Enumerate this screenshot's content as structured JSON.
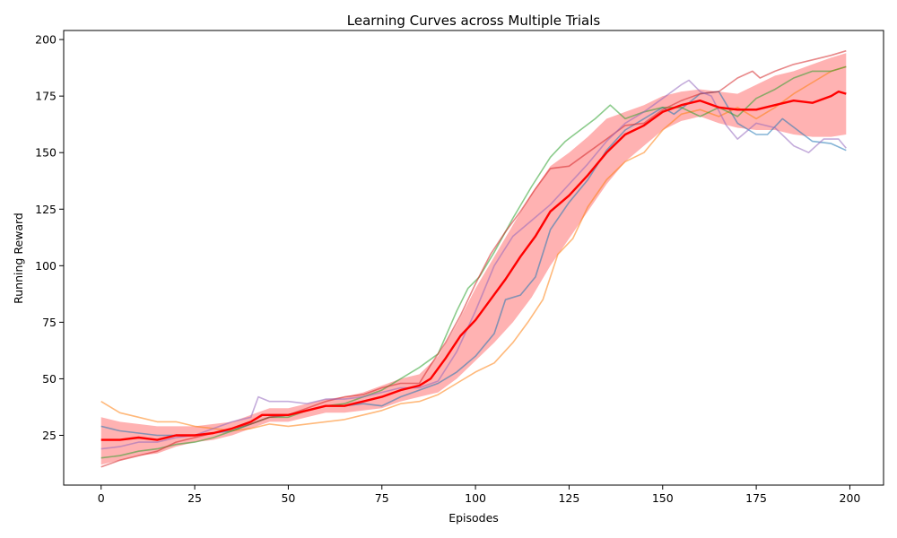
{
  "chart_data": {
    "type": "line",
    "title": "Learning Curves across Multiple Trials",
    "xlabel": "Episodes",
    "ylabel": "Running Reward",
    "xlim": [
      -10,
      209
    ],
    "ylim": [
      3,
      204
    ],
    "x_ticks": [
      0,
      25,
      50,
      75,
      100,
      125,
      150,
      175,
      200
    ],
    "y_ticks": [
      25,
      50,
      75,
      100,
      125,
      150,
      175,
      200
    ],
    "grid": false,
    "legend": "none",
    "series": [
      {
        "color": "#1f77b4",
        "opacity": 0.55,
        "points": [
          [
            0,
            29
          ],
          [
            5,
            27
          ],
          [
            10,
            26
          ],
          [
            15,
            25
          ],
          [
            20,
            25
          ],
          [
            25,
            25
          ],
          [
            30,
            26
          ],
          [
            35,
            27
          ],
          [
            40,
            30
          ],
          [
            45,
            33
          ],
          [
            50,
            34
          ],
          [
            55,
            36
          ],
          [
            60,
            38
          ],
          [
            65,
            38
          ],
          [
            70,
            39
          ],
          [
            75,
            38
          ],
          [
            80,
            42
          ],
          [
            85,
            45
          ],
          [
            90,
            48
          ],
          [
            95,
            53
          ],
          [
            100,
            60
          ],
          [
            105,
            70
          ],
          [
            108,
            85
          ],
          [
            112,
            87
          ],
          [
            116,
            95
          ],
          [
            120,
            116
          ],
          [
            125,
            128
          ],
          [
            130,
            138
          ],
          [
            135,
            151
          ],
          [
            140,
            160
          ],
          [
            145,
            165
          ],
          [
            150,
            170
          ],
          [
            153,
            167
          ],
          [
            157,
            172
          ],
          [
            160,
            176
          ],
          [
            165,
            177
          ],
          [
            170,
            163
          ],
          [
            175,
            158
          ],
          [
            178,
            158
          ],
          [
            182,
            165
          ],
          [
            186,
            160
          ],
          [
            190,
            155
          ],
          [
            195,
            154
          ],
          [
            199,
            151
          ]
        ]
      },
      {
        "color": "#ff7f0e",
        "opacity": 0.55,
        "points": [
          [
            0,
            40
          ],
          [
            5,
            35
          ],
          [
            10,
            33
          ],
          [
            15,
            31
          ],
          [
            20,
            31
          ],
          [
            25,
            29
          ],
          [
            30,
            28
          ],
          [
            35,
            27
          ],
          [
            40,
            28
          ],
          [
            45,
            30
          ],
          [
            50,
            29
          ],
          [
            55,
            30
          ],
          [
            60,
            31
          ],
          [
            65,
            32
          ],
          [
            70,
            34
          ],
          [
            75,
            36
          ],
          [
            80,
            39
          ],
          [
            85,
            40
          ],
          [
            90,
            43
          ],
          [
            95,
            48
          ],
          [
            100,
            53
          ],
          [
            105,
            57
          ],
          [
            110,
            66
          ],
          [
            114,
            75
          ],
          [
            118,
            85
          ],
          [
            122,
            105
          ],
          [
            126,
            112
          ],
          [
            130,
            126
          ],
          [
            135,
            138
          ],
          [
            140,
            146
          ],
          [
            145,
            150
          ],
          [
            150,
            160
          ],
          [
            155,
            167
          ],
          [
            160,
            169
          ],
          [
            165,
            166
          ],
          [
            170,
            170
          ],
          [
            175,
            165
          ],
          [
            180,
            170
          ],
          [
            185,
            176
          ],
          [
            190,
            181
          ],
          [
            195,
            186
          ],
          [
            199,
            188
          ]
        ]
      },
      {
        "color": "#2ca02c",
        "opacity": 0.55,
        "points": [
          [
            0,
            15
          ],
          [
            5,
            16
          ],
          [
            10,
            18
          ],
          [
            15,
            19
          ],
          [
            20,
            21
          ],
          [
            25,
            22
          ],
          [
            30,
            24
          ],
          [
            35,
            27
          ],
          [
            40,
            30
          ],
          [
            45,
            33
          ],
          [
            50,
            33
          ],
          [
            55,
            36
          ],
          [
            60,
            38
          ],
          [
            65,
            39
          ],
          [
            70,
            42
          ],
          [
            75,
            45
          ],
          [
            80,
            50
          ],
          [
            85,
            55
          ],
          [
            90,
            61
          ],
          [
            95,
            80
          ],
          [
            98,
            90
          ],
          [
            101,
            95
          ],
          [
            105,
            106
          ],
          [
            110,
            121
          ],
          [
            115,
            135
          ],
          [
            120,
            148
          ],
          [
            124,
            155
          ],
          [
            128,
            160
          ],
          [
            132,
            165
          ],
          [
            136,
            171
          ],
          [
            140,
            165
          ],
          [
            145,
            168
          ],
          [
            150,
            170
          ],
          [
            155,
            170
          ],
          [
            160,
            166
          ],
          [
            165,
            170
          ],
          [
            170,
            166
          ],
          [
            175,
            174
          ],
          [
            180,
            178
          ],
          [
            185,
            183
          ],
          [
            190,
            186
          ],
          [
            195,
            186
          ],
          [
            199,
            188
          ]
        ]
      },
      {
        "color": "#d62728",
        "opacity": 0.55,
        "points": [
          [
            0,
            11
          ],
          [
            5,
            14
          ],
          [
            10,
            16
          ],
          [
            15,
            18
          ],
          [
            20,
            22
          ],
          [
            25,
            24
          ],
          [
            30,
            26
          ],
          [
            35,
            28
          ],
          [
            40,
            30
          ],
          [
            45,
            33
          ],
          [
            50,
            34
          ],
          [
            55,
            37
          ],
          [
            60,
            40
          ],
          [
            65,
            42
          ],
          [
            70,
            43
          ],
          [
            75,
            46
          ],
          [
            80,
            48
          ],
          [
            85,
            48
          ],
          [
            88,
            56
          ],
          [
            92,
            66
          ],
          [
            96,
            78
          ],
          [
            100,
            92
          ],
          [
            104,
            105
          ],
          [
            108,
            115
          ],
          [
            112,
            124
          ],
          [
            116,
            134
          ],
          [
            120,
            143
          ],
          [
            125,
            144
          ],
          [
            130,
            150
          ],
          [
            135,
            156
          ],
          [
            140,
            162
          ],
          [
            145,
            163
          ],
          [
            150,
            169
          ],
          [
            155,
            173
          ],
          [
            160,
            176
          ],
          [
            165,
            177
          ],
          [
            170,
            183
          ],
          [
            174,
            186
          ],
          [
            176,
            183
          ],
          [
            180,
            186
          ],
          [
            185,
            189
          ],
          [
            190,
            191
          ],
          [
            195,
            193
          ],
          [
            199,
            195
          ]
        ]
      },
      {
        "color": "#9467bd",
        "opacity": 0.55,
        "points": [
          [
            0,
            19
          ],
          [
            5,
            20
          ],
          [
            10,
            22
          ],
          [
            15,
            22
          ],
          [
            20,
            24
          ],
          [
            25,
            25
          ],
          [
            30,
            28
          ],
          [
            35,
            31
          ],
          [
            40,
            33
          ],
          [
            42,
            42
          ],
          [
            45,
            40
          ],
          [
            50,
            40
          ],
          [
            55,
            39
          ],
          [
            60,
            41
          ],
          [
            65,
            41
          ],
          [
            70,
            42
          ],
          [
            75,
            44
          ],
          [
            80,
            46
          ],
          [
            85,
            46
          ],
          [
            90,
            49
          ],
          [
            95,
            62
          ],
          [
            100,
            80
          ],
          [
            105,
            100
          ],
          [
            110,
            113
          ],
          [
            115,
            120
          ],
          [
            120,
            127
          ],
          [
            125,
            136
          ],
          [
            130,
            145
          ],
          [
            135,
            155
          ],
          [
            140,
            163
          ],
          [
            145,
            168
          ],
          [
            150,
            174
          ],
          [
            155,
            180
          ],
          [
            157,
            182
          ],
          [
            160,
            177
          ],
          [
            163,
            175
          ],
          [
            167,
            162
          ],
          [
            170,
            156
          ],
          [
            175,
            163
          ],
          [
            180,
            161
          ],
          [
            185,
            153
          ],
          [
            189,
            150
          ],
          [
            193,
            156
          ],
          [
            197,
            156
          ],
          [
            199,
            152
          ]
        ]
      }
    ],
    "mean_series": {
      "color": "#ff0000",
      "points": [
        [
          0,
          23
        ],
        [
          5,
          23
        ],
        [
          10,
          24
        ],
        [
          15,
          23
        ],
        [
          20,
          25
        ],
        [
          25,
          25
        ],
        [
          30,
          26
        ],
        [
          35,
          28
        ],
        [
          40,
          31
        ],
        [
          43,
          34
        ],
        [
          45,
          34
        ],
        [
          50,
          34
        ],
        [
          55,
          36
        ],
        [
          60,
          38
        ],
        [
          65,
          38
        ],
        [
          70,
          40
        ],
        [
          75,
          42
        ],
        [
          80,
          45
        ],
        [
          85,
          47
        ],
        [
          88,
          50
        ],
        [
          92,
          59
        ],
        [
          96,
          69
        ],
        [
          100,
          76
        ],
        [
          104,
          85
        ],
        [
          108,
          94
        ],
        [
          112,
          104
        ],
        [
          116,
          113
        ],
        [
          120,
          124
        ],
        [
          125,
          131
        ],
        [
          130,
          140
        ],
        [
          135,
          150
        ],
        [
          140,
          158
        ],
        [
          145,
          162
        ],
        [
          150,
          168
        ],
        [
          155,
          171
        ],
        [
          160,
          173
        ],
        [
          165,
          170
        ],
        [
          170,
          169
        ],
        [
          175,
          169
        ],
        [
          180,
          171
        ],
        [
          185,
          173
        ],
        [
          190,
          172
        ],
        [
          195,
          175
        ],
        [
          197,
          177
        ],
        [
          199,
          176
        ]
      ]
    },
    "band": {
      "color": "#ff0000",
      "opacity": 0.3,
      "upper": [
        [
          0,
          33
        ],
        [
          5,
          31
        ],
        [
          10,
          30
        ],
        [
          15,
          29
        ],
        [
          20,
          29
        ],
        [
          25,
          29
        ],
        [
          30,
          30
        ],
        [
          35,
          31
        ],
        [
          40,
          34
        ],
        [
          45,
          37
        ],
        [
          50,
          37
        ],
        [
          55,
          39
        ],
        [
          60,
          41
        ],
        [
          65,
          42
        ],
        [
          70,
          44
        ],
        [
          75,
          47
        ],
        [
          80,
          50
        ],
        [
          85,
          52
        ],
        [
          90,
          60
        ],
        [
          95,
          74
        ],
        [
          100,
          90
        ],
        [
          105,
          104
        ],
        [
          110,
          118
        ],
        [
          115,
          132
        ],
        [
          120,
          144
        ],
        [
          125,
          150
        ],
        [
          130,
          157
        ],
        [
          135,
          165
        ],
        [
          140,
          168
        ],
        [
          145,
          171
        ],
        [
          150,
          175
        ],
        [
          155,
          177
        ],
        [
          160,
          178
        ],
        [
          165,
          177
        ],
        [
          170,
          176
        ],
        [
          175,
          180
        ],
        [
          180,
          184
        ],
        [
          185,
          186
        ],
        [
          190,
          189
        ],
        [
          195,
          192
        ],
        [
          199,
          194
        ]
      ],
      "lower": [
        [
          0,
          12
        ],
        [
          5,
          14
        ],
        [
          10,
          16
        ],
        [
          15,
          17
        ],
        [
          20,
          20
        ],
        [
          25,
          22
        ],
        [
          30,
          23
        ],
        [
          35,
          25
        ],
        [
          40,
          28
        ],
        [
          45,
          31
        ],
        [
          50,
          31
        ],
        [
          55,
          33
        ],
        [
          60,
          35
        ],
        [
          65,
          35
        ],
        [
          70,
          36
        ],
        [
          75,
          37
        ],
        [
          80,
          40
        ],
        [
          85,
          42
        ],
        [
          90,
          44
        ],
        [
          95,
          50
        ],
        [
          100,
          58
        ],
        [
          105,
          66
        ],
        [
          110,
          75
        ],
        [
          115,
          86
        ],
        [
          120,
          100
        ],
        [
          125,
          112
        ],
        [
          130,
          124
        ],
        [
          135,
          136
        ],
        [
          140,
          146
        ],
        [
          145,
          153
        ],
        [
          150,
          160
        ],
        [
          155,
          164
        ],
        [
          160,
          166
        ],
        [
          165,
          163
        ],
        [
          170,
          161
        ],
        [
          175,
          160
        ],
        [
          180,
          160
        ],
        [
          185,
          158
        ],
        [
          190,
          157
        ],
        [
          195,
          157
        ],
        [
          199,
          158
        ]
      ]
    }
  }
}
